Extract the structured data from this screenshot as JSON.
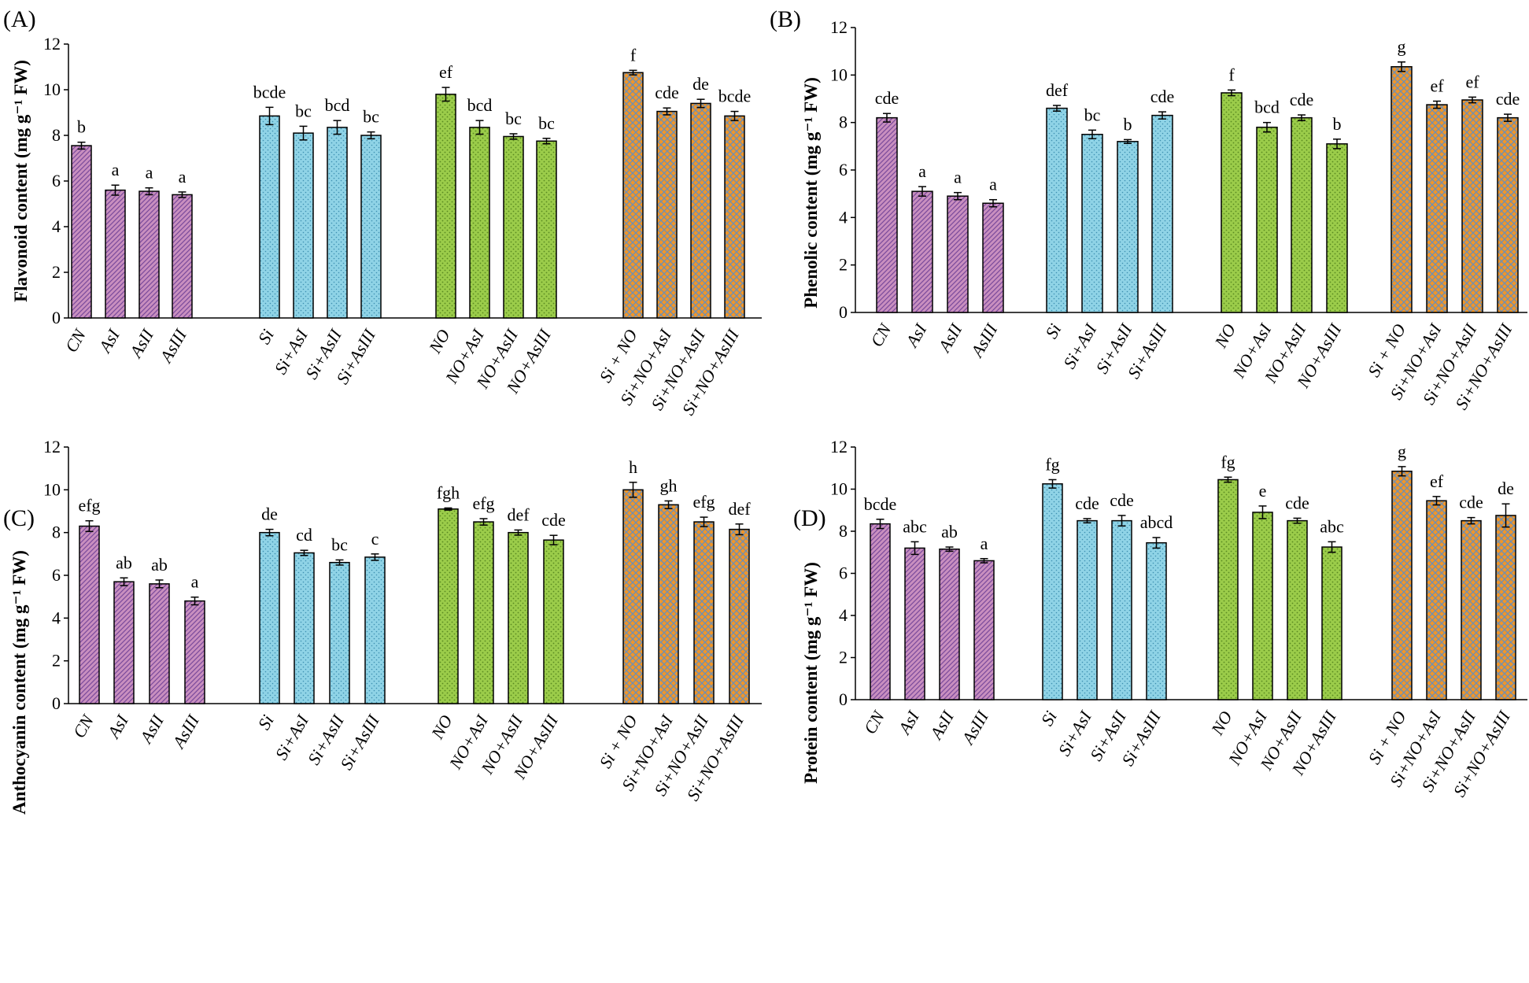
{
  "categories": [
    "CN",
    "AsI",
    "AsII",
    "AsIII",
    "Si",
    "Si+AsI",
    "Si+AsII",
    "Si+AsIII",
    "NO",
    "NO+AsI",
    "NO+AsII",
    "NO+AsIII",
    "Si + NO",
    "Si+NO+AsI",
    "Si+NO+AsII",
    "Si+NO+AsIII"
  ],
  "group_colors": [
    "#c98fbf",
    "#8fd3e6",
    "#9bcc4a",
    "#f0962a"
  ],
  "chart_data": [
    {
      "type": "bar",
      "panel": "(A)",
      "ylabel": "Flavonoid content (mg g⁻¹ FW)",
      "ylim": [
        0,
        12
      ],
      "yticks": [
        0,
        2,
        4,
        6,
        8,
        10,
        12
      ],
      "values": [
        7.55,
        5.6,
        5.55,
        5.4,
        8.85,
        8.1,
        8.35,
        8.0,
        9.8,
        8.35,
        7.95,
        7.75,
        10.75,
        9.05,
        9.4,
        8.85
      ],
      "errors": [
        0.15,
        0.22,
        0.15,
        0.12,
        0.38,
        0.3,
        0.3,
        0.15,
        0.3,
        0.3,
        0.12,
        0.12,
        0.1,
        0.15,
        0.18,
        0.2
      ],
      "letters": [
        "b",
        "a",
        "a",
        "a",
        "bcde",
        "bc",
        "bcd",
        "bc",
        "ef",
        "bcd",
        "bc",
        "bc",
        "f",
        "cde",
        "de",
        "bcde"
      ]
    },
    {
      "type": "bar",
      "panel": "(B)",
      "ylabel": "Phenolic content (mg g⁻¹ FW)",
      "ylim": [
        0,
        12
      ],
      "yticks": [
        0,
        2,
        4,
        6,
        8,
        10,
        12
      ],
      "values": [
        8.2,
        5.1,
        4.9,
        4.6,
        8.6,
        7.5,
        7.2,
        8.3,
        9.25,
        7.8,
        8.2,
        7.1,
        10.35,
        8.75,
        8.95,
        8.2
      ],
      "errors": [
        0.18,
        0.2,
        0.15,
        0.15,
        0.12,
        0.18,
        0.08,
        0.15,
        0.12,
        0.2,
        0.12,
        0.2,
        0.2,
        0.15,
        0.12,
        0.15
      ],
      "letters": [
        "cde",
        "a",
        "a",
        "a",
        "def",
        "bc",
        "b",
        "cde",
        "f",
        "bcd",
        "cde",
        "b",
        "g",
        "ef",
        "ef",
        "cde"
      ]
    },
    {
      "type": "bar",
      "panel": "(C)",
      "ylabel": "Anthocyanin content (mg g⁻¹ FW)",
      "ylim": [
        0,
        12
      ],
      "yticks": [
        0,
        2,
        4,
        6,
        8,
        10,
        12
      ],
      "values": [
        8.3,
        5.7,
        5.6,
        4.8,
        8.0,
        7.05,
        6.6,
        6.85,
        9.1,
        8.5,
        8.0,
        7.65,
        10.0,
        9.3,
        8.5,
        8.15
      ],
      "errors": [
        0.25,
        0.18,
        0.18,
        0.18,
        0.15,
        0.12,
        0.12,
        0.15,
        0.05,
        0.15,
        0.12,
        0.22,
        0.35,
        0.18,
        0.22,
        0.25
      ],
      "letters": [
        "efg",
        "ab",
        "ab",
        "a",
        "de",
        "cd",
        "bc",
        "c",
        "fgh",
        "efg",
        "def",
        "cde",
        "h",
        "gh",
        "efg",
        "def"
      ]
    },
    {
      "type": "bar",
      "panel": "(D)",
      "ylabel": "Protein content (mg g⁻¹ FW)",
      "ylim": [
        0,
        12
      ],
      "yticks": [
        0,
        2,
        4,
        6,
        8,
        10,
        12
      ],
      "values": [
        8.35,
        7.2,
        7.15,
        6.6,
        10.25,
        8.5,
        8.5,
        7.45,
        10.45,
        8.9,
        8.5,
        7.25,
        10.85,
        9.45,
        8.5,
        8.75
      ],
      "errors": [
        0.22,
        0.3,
        0.1,
        0.1,
        0.2,
        0.1,
        0.25,
        0.25,
        0.12,
        0.3,
        0.12,
        0.25,
        0.22,
        0.2,
        0.15,
        0.55
      ],
      "letters": [
        "bcde",
        "abc",
        "ab",
        "a",
        "fg",
        "cde",
        "cde",
        "abcd",
        "fg",
        "e",
        "cde",
        "abc",
        "g",
        "ef",
        "cde",
        "de"
      ]
    }
  ]
}
